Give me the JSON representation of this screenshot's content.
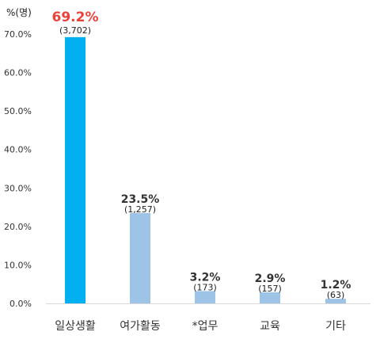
{
  "unit_label": "%(명)",
  "colors": {
    "highlight_bar": "#00b0f0",
    "bar": "#9dc3e6",
    "highlight_label": "#e8423a",
    "label": "#333333",
    "axis": "#d9d9d9"
  },
  "chart_data": {
    "type": "bar",
    "title": "",
    "xlabel": "",
    "ylabel": "%(명)",
    "ylim": [
      0,
      70
    ],
    "yticks": [
      "0.0%",
      "10.0%",
      "20.0%",
      "30.0%",
      "40.0%",
      "50.0%",
      "60.0%",
      "70.0%"
    ],
    "grid": false,
    "categories": [
      "일상생활",
      "여가활동",
      "*업무",
      "교육",
      "기타"
    ],
    "values": [
      69.2,
      23.5,
      3.2,
      2.9,
      1.2
    ],
    "value_labels": [
      "69.2%",
      "23.5%",
      "3.2%",
      "2.9%",
      "1.2%"
    ],
    "count_labels": [
      "(3,702)",
      "(1,257)",
      "(173)",
      "(157)",
      "(63)"
    ],
    "highlight_index": 0
  }
}
